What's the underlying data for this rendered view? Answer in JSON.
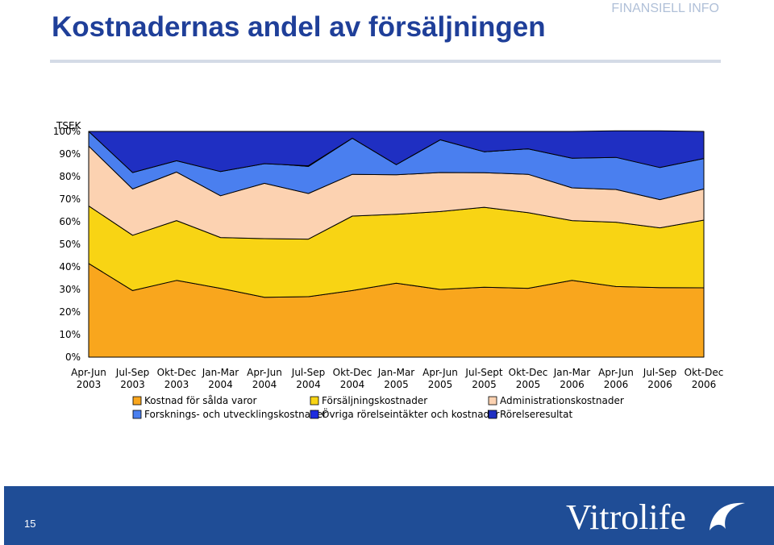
{
  "header": {
    "title": "Kostnadernas andel av försäljningen",
    "brand": "FINANSIELL INFO"
  },
  "footer": {
    "page_number": "15",
    "logo_text": "Vitrolife"
  },
  "chart_data": {
    "type": "area",
    "stacked": true,
    "normalized_percent": true,
    "title": "Kostnadernas andel av försäljningen",
    "unit_label": "TSEK",
    "ylim": [
      0,
      100
    ],
    "yticks": [
      "0%",
      "10%",
      "20%",
      "30%",
      "40%",
      "50%",
      "60%",
      "70%",
      "80%",
      "90%",
      "100%"
    ],
    "categories": [
      [
        "Apr-Jun",
        "2003"
      ],
      [
        "Jul-Sep",
        "2003"
      ],
      [
        "Okt-Dec",
        "2003"
      ],
      [
        "Jan-Mar",
        "2004"
      ],
      [
        "Apr-Jun",
        "2004"
      ],
      [
        "Jul-Sep",
        "2004"
      ],
      [
        "Okt-Dec",
        "2004"
      ],
      [
        "Jan-Mar",
        "2005"
      ],
      [
        "Apr-Jun",
        "2005"
      ],
      [
        "Jul-Sept",
        "2005"
      ],
      [
        "Okt-Dec",
        "2005"
      ],
      [
        "Jan-Mar",
        "2006"
      ],
      [
        "Apr-Jun",
        "2006"
      ],
      [
        "Jul-Sep",
        "2006"
      ],
      [
        "Okt-Dec",
        "2006"
      ]
    ],
    "series": [
      {
        "name": "Kostnad för sålda varor",
        "color": "#f9a61d",
        "values": [
          41.5,
          29.5,
          34,
          30.5,
          26.5,
          26.8,
          29.5,
          32.8,
          30,
          31,
          30.5,
          34,
          31.3,
          30.8,
          30.7
        ]
      },
      {
        "name": "Försäljningskostnader",
        "color": "#f8d414",
        "values": [
          25.5,
          24.5,
          26.5,
          22.5,
          26,
          25.5,
          33,
          30.5,
          34.5,
          35.4,
          33.5,
          26.5,
          28.5,
          26.5,
          30
        ]
      },
      {
        "name": "Administrationskostnader",
        "color": "#fcd2b1",
        "values": [
          26.5,
          20.5,
          21.5,
          18.5,
          24.5,
          20.2,
          18.5,
          17.5,
          17.3,
          15.3,
          17,
          14.5,
          14.5,
          12.5,
          13.8
        ]
      },
      {
        "name": "Forsknings- och utvecklingskostnader",
        "color": "#4a7fef",
        "values": [
          6.5,
          7.5,
          5,
          11,
          9,
          12,
          16,
          4.5,
          14.5,
          9.3,
          11.3,
          13.5,
          14.5,
          14.5,
          14
        ]
      },
      {
        "name": "Övriga rörelseintäkter och kostnader",
        "color": "#1d2ce0",
        "values": [
          0,
          -0.2,
          0,
          -0.3,
          -0.3,
          0.3,
          0,
          0,
          0,
          0,
          0,
          -0.4,
          -0.3,
          -0.3,
          -0.5
        ]
      },
      {
        "name": "Rörelseresultat",
        "color": "#1f2fc2",
        "values": [
          0,
          18.2,
          13,
          17.8,
          14.3,
          15.2,
          3,
          14.7,
          3.7,
          9,
          7.7,
          11.9,
          11.8,
          16.3,
          12
        ]
      }
    ]
  }
}
